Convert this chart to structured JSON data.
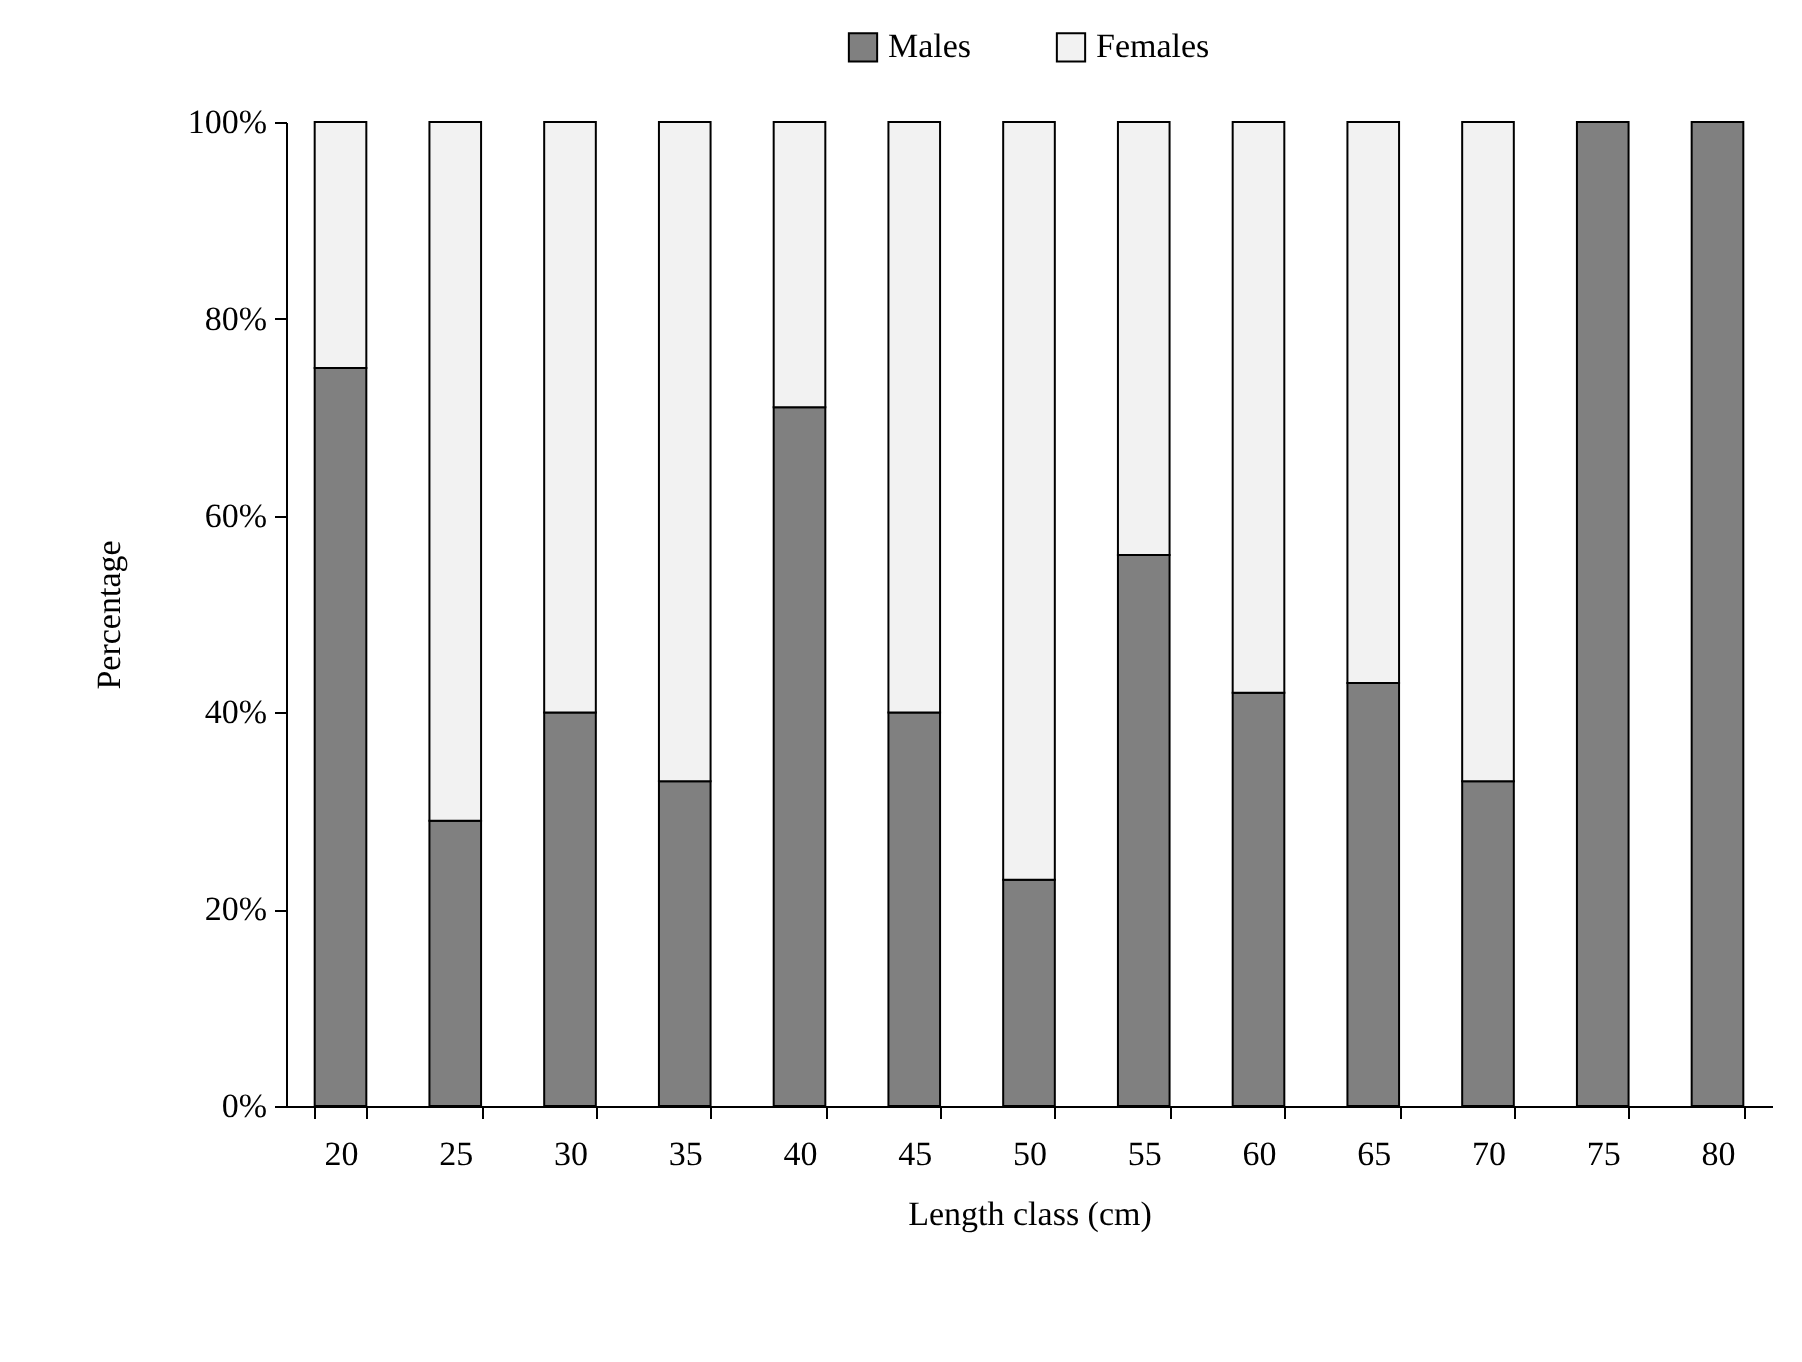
{
  "chart_data": {
    "type": "bar",
    "stacked": true,
    "xlabel": "Length class (cm)",
    "ylabel": "Percentage",
    "categories": [
      "20",
      "25",
      "30",
      "35",
      "40",
      "45",
      "50",
      "55",
      "60",
      "65",
      "70",
      "75",
      "80"
    ],
    "series": [
      {
        "name": "Males",
        "color": "#808080",
        "values": [
          75,
          29,
          40,
          33,
          71,
          40,
          23,
          56,
          42,
          43,
          33,
          100,
          100
        ]
      },
      {
        "name": "Females",
        "color": "#f2f2f2",
        "values": [
          25,
          71,
          60,
          67,
          29,
          60,
          77,
          44,
          58,
          57,
          67,
          null,
          null
        ]
      }
    ],
    "ylim": [
      0,
      100
    ],
    "yticks": [
      {
        "value": 0,
        "label": "0%"
      },
      {
        "value": 20,
        "label": "20%"
      },
      {
        "value": 40,
        "label": "40%"
      },
      {
        "value": 60,
        "label": "60%"
      },
      {
        "value": 80,
        "label": "80%"
      },
      {
        "value": 100,
        "label": "100%"
      }
    ],
    "grid": false,
    "legend": "top"
  }
}
